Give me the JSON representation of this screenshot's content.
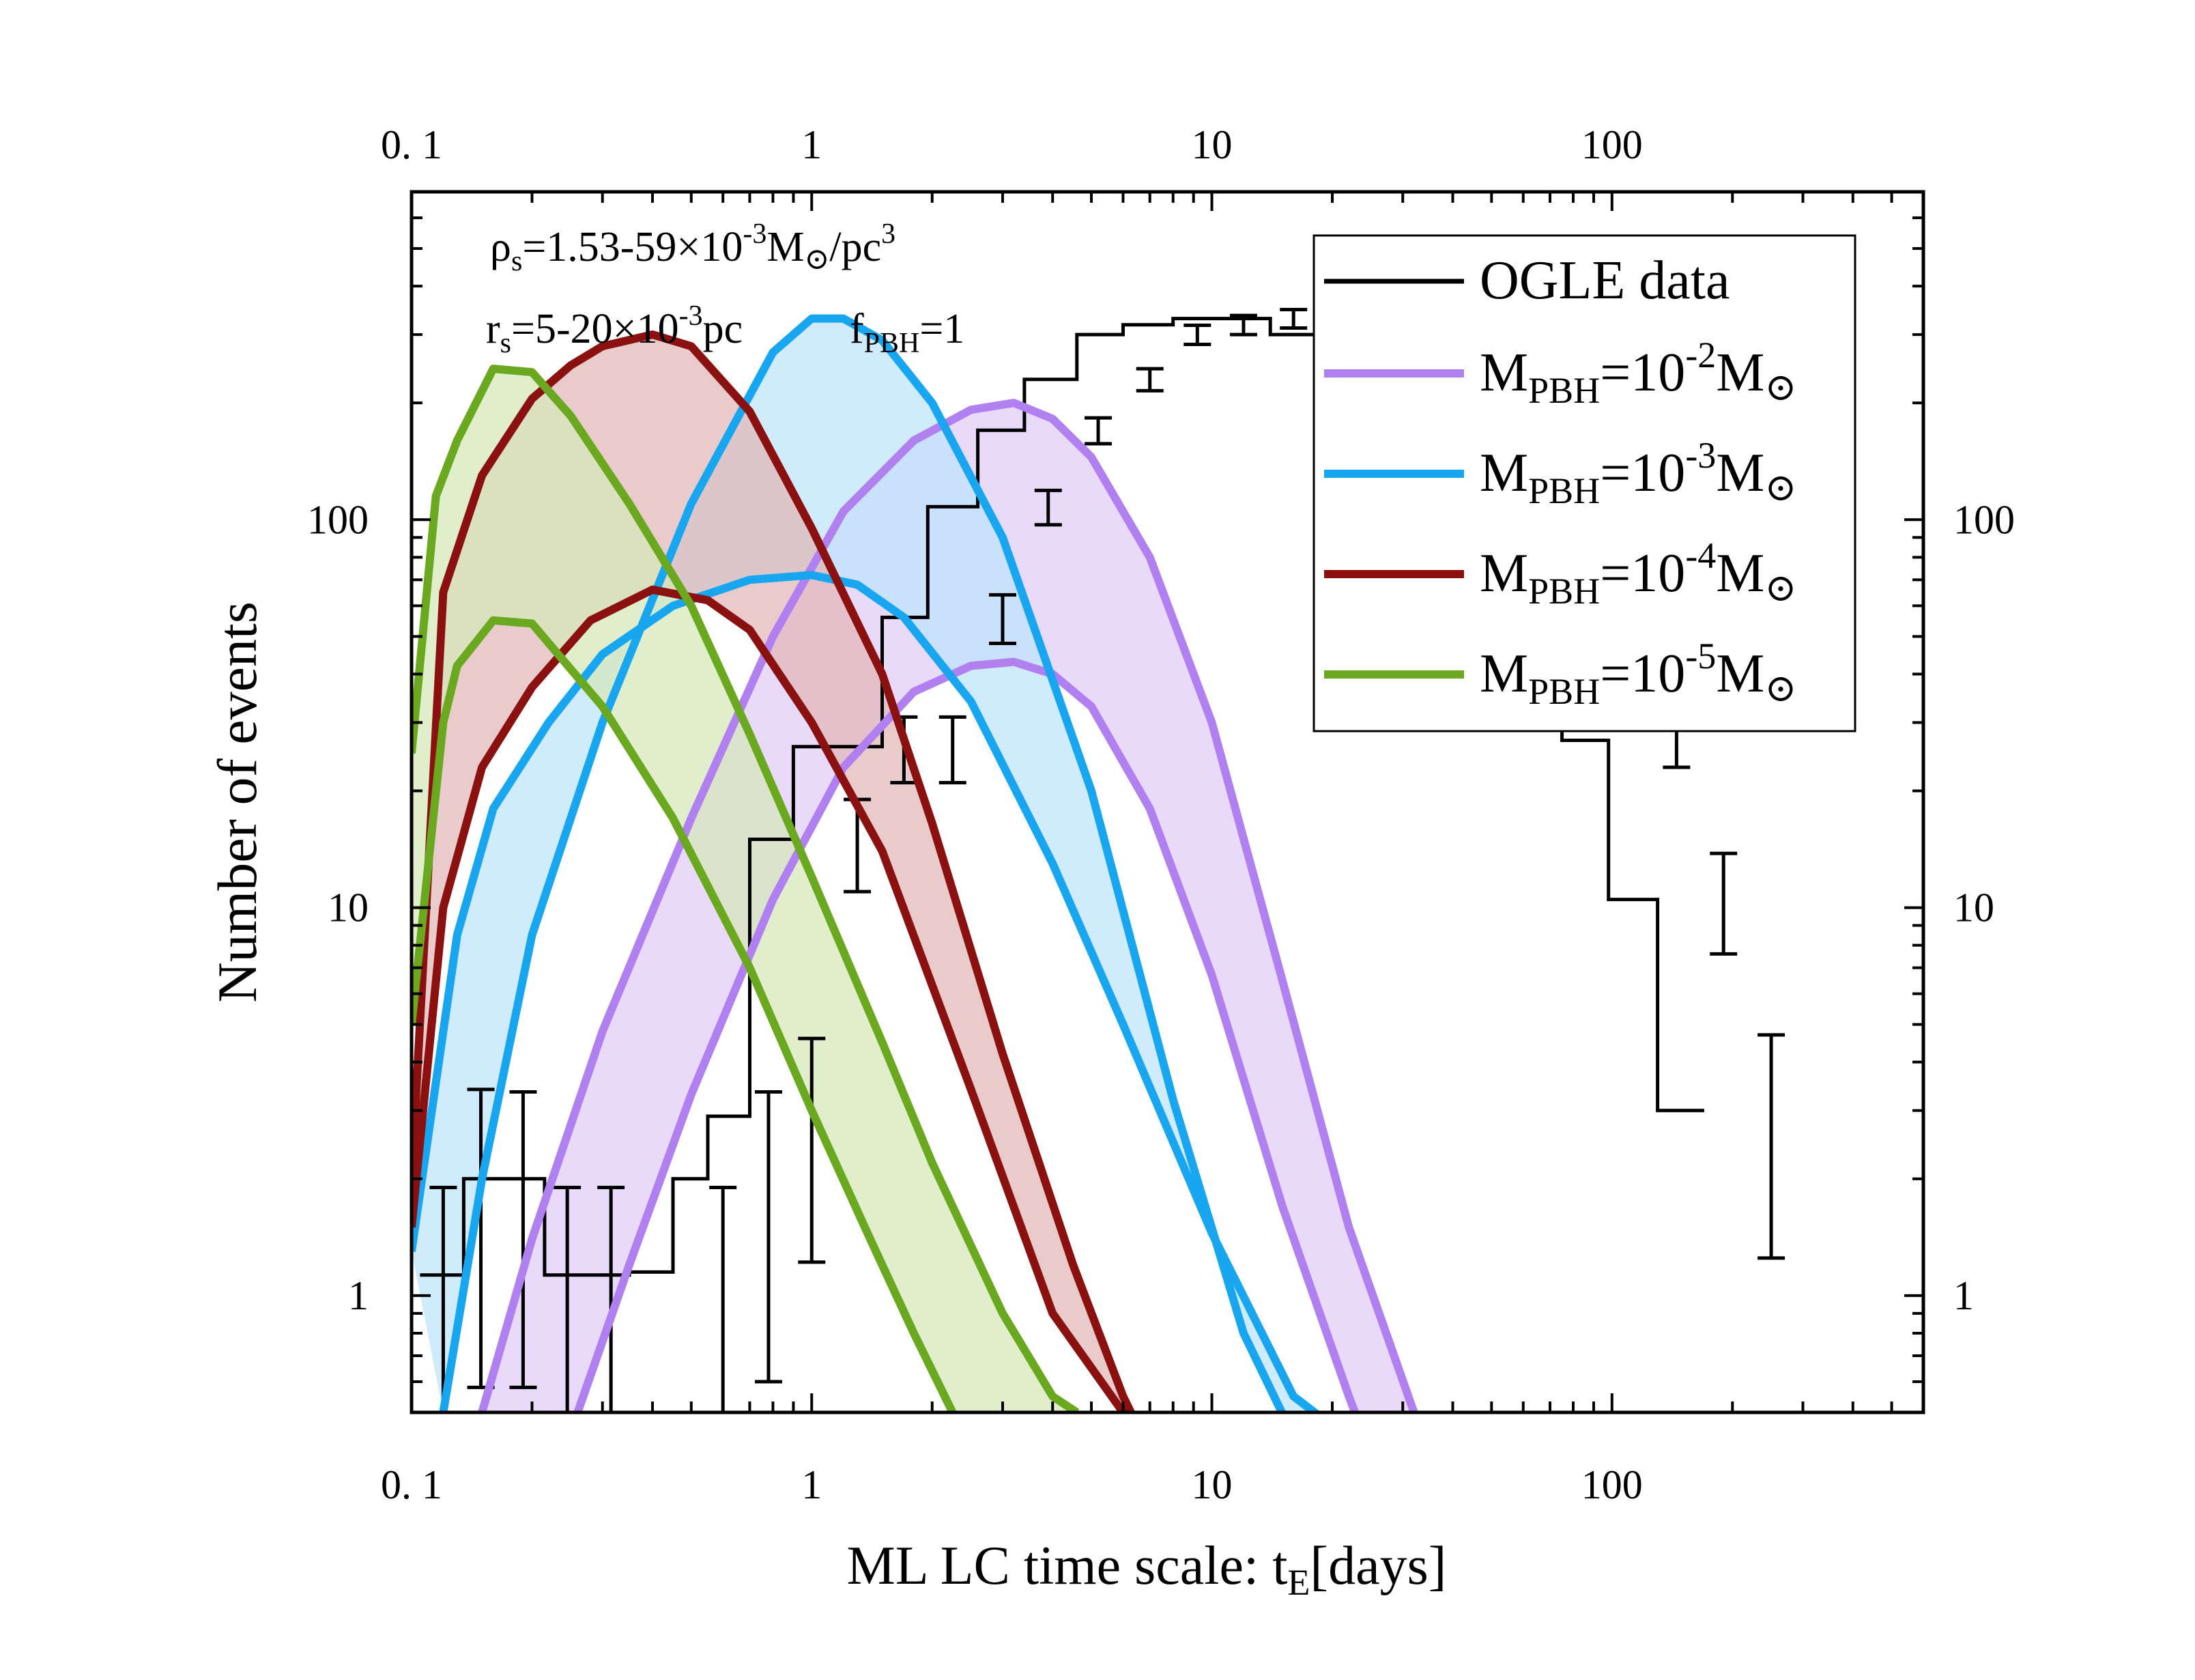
{
  "chart_data": {
    "type": "area",
    "xscale": "log",
    "yscale": "log",
    "xlim": [
      0.1,
      600
    ],
    "ylim": [
      0.5,
      700
    ],
    "xlabel_main": "ML LC time scale: t",
    "xlabel_sub": "E",
    "xlabel_end": "[days]",
    "ylabel": "Number of events",
    "x_ticks": [
      0.1,
      1,
      10,
      100
    ],
    "x_tick_labels": [
      "0. 1",
      "1",
      "10",
      "100"
    ],
    "y_ticks": [
      1,
      10,
      100
    ],
    "y_tick_labels": [
      "1",
      "10",
      "100"
    ],
    "annotations": {
      "rho_main": "ρ",
      "rho_sub": "s",
      "rho_mid": "=1.53-59×10",
      "rho_sup": "-3",
      "rho_unit": "M",
      "rho_unit_sym": "⊙",
      "rho_tail": "/pc",
      "rho_tail_sup": "3",
      "rs_main": "r",
      "rs_sub": "s",
      "rs_mid": "=5-20×10",
      "rs_sup": "-3",
      "rs_tail": "pc",
      "f_main": "f",
      "f_sub": "PBH",
      "f_tail": "=1"
    },
    "legend_position": "top-right",
    "ogle": {
      "name": "OGLE data",
      "color": "#000000",
      "bins": [
        {
          "x": 0.12,
          "y": 1.13,
          "err": [
            0.5,
            1.9
          ]
        },
        {
          "x": 0.149,
          "y": 2.0,
          "err": [
            0.58,
            3.4
          ]
        },
        {
          "x": 0.19,
          "y": 2.0,
          "err": [
            0.58,
            3.35
          ]
        },
        {
          "x": 0.245,
          "y": 1.13,
          "err": [
            0.45,
            1.9
          ]
        },
        {
          "x": 0.315,
          "y": 1.13,
          "err": [
            0.45,
            1.9
          ]
        },
        {
          "x": 0.6,
          "y": 1.15,
          "err": [
            0.45,
            1.9
          ]
        },
        {
          "x": 0.78,
          "y": 2.0,
          "err": [
            0.6,
            3.35
          ]
        },
        {
          "x": 1.0,
          "y": 2.9,
          "err": [
            1.22,
            4.6
          ]
        },
        {
          "x": 1.3,
          "y": 15.0,
          "err": [
            11.0,
            19.0
          ]
        },
        {
          "x": 1.7,
          "y": 26.0,
          "err": [
            21.0,
            31.0
          ]
        },
        {
          "x": 2.25,
          "y": 26.0,
          "err": [
            21.0,
            31.0
          ]
        },
        {
          "x": 3.0,
          "y": 56.0,
          "err": [
            48.0,
            64.0
          ]
        },
        {
          "x": 3.9,
          "y": 108.0,
          "err": [
            97.0,
            119.0
          ]
        },
        {
          "x": 5.2,
          "y": 170.0,
          "err": [
            157.0,
            183.0
          ]
        },
        {
          "x": 7.0,
          "y": 230.0,
          "err": [
            215.0,
            245.0
          ]
        },
        {
          "x": 9.2,
          "y": 300.0,
          "err": [
            283.0,
            317.0
          ]
        },
        {
          "x": 12.0,
          "y": 318.0,
          "err": [
            300.0,
            336.0
          ]
        },
        {
          "x": 16.0,
          "y": 330.0,
          "err": [
            312.0,
            348.0
          ]
        },
        {
          "x": 21.0,
          "y": 330.0,
          "err": [
            312.0,
            348.0
          ]
        },
        {
          "x": 28.0,
          "y": 300.0,
          "err": [
            283.0,
            317.0
          ]
        },
        {
          "x": 37.0,
          "y": 228.0,
          "err": [
            213.0,
            243.0
          ]
        },
        {
          "x": 49.0,
          "y": 185.0,
          "err": [
            171.0,
            199.0
          ]
        },
        {
          "x": 65.0,
          "y": 95.0,
          "err": [
            86.0,
            104.0
          ]
        },
        {
          "x": 85.0,
          "y": 75.0,
          "err": [
            67.0,
            83.0
          ]
        },
        {
          "x": 110.0,
          "y": 50.0,
          "err": [
            43.0,
            57.0
          ]
        },
        {
          "x": 145.0,
          "y": 27.0,
          "err": [
            23.0,
            32.0
          ]
        },
        {
          "x": 190.0,
          "y": 10.5,
          "err": [
            7.6,
            13.8
          ]
        },
        {
          "x": 250.0,
          "y": 3.0,
          "err": [
            1.25,
            4.7
          ]
        }
      ],
      "step_edges": [
        0.105,
        0.135,
        0.165,
        0.215,
        0.27,
        0.35,
        0.45,
        0.55,
        0.7,
        0.9,
        1.15,
        1.5,
        1.95,
        2.6,
        3.4,
        4.6,
        6.0,
        8.0,
        10.5,
        14.0,
        18.5,
        24.5,
        32.0,
        43.0,
        57.0,
        75.0,
        98.0,
        130.0,
        170.0,
        225.0,
        290.0
      ]
    },
    "series": [
      {
        "name_main": "M",
        "name_sub": "PBH",
        "name_mid": "=10",
        "name_sup": "-2",
        "name_unit": "M",
        "name_unit_sym": "⊙",
        "color": "#b07ff0",
        "fill": "#e2ccf8",
        "upper": {
          "x": [
            0.15,
            0.2,
            0.3,
            0.5,
            0.8,
            1.2,
            1.8,
            2.5,
            3.2,
            4.0,
            5.0,
            7.0,
            10.0,
            15.0,
            22.0,
            32.0
          ],
          "y": [
            0.5,
            1.4,
            4.8,
            17,
            50,
            105,
            160,
            192,
            200,
            182,
            145,
            80,
            30,
            6.5,
            1.5,
            0.5
          ]
        },
        "lower": {
          "x": [
            0.26,
            0.35,
            0.5,
            0.8,
            1.2,
            1.8,
            2.5,
            3.2,
            4.0,
            5.0,
            7.0,
            10.0,
            15.0,
            22.0,
            32.0,
            52.0
          ],
          "y": [
            0.5,
            1.2,
            3.3,
            10.5,
            23,
            36,
            42,
            43,
            40,
            33,
            18,
            6.7,
            1.7,
            0.55,
            0.2,
            0.1
          ]
        }
      },
      {
        "name_main": "M",
        "name_sub": "PBH",
        "name_mid": "=10",
        "name_sup": "-3",
        "name_unit": "M",
        "name_unit_sym": "⊙",
        "color": "#18a6f0",
        "fill": "#bde3fb",
        "upper": {
          "x": [
            0.12,
            0.15,
            0.2,
            0.3,
            0.5,
            0.8,
            1.0,
            1.2,
            1.5,
            2.0,
            3.0,
            5.0,
            8.0,
            12.0,
            19.0
          ],
          "y": [
            0.5,
            2.0,
            8.5,
            30,
            110,
            270,
            330,
            330,
            290,
            200,
            90,
            20,
            3.2,
            0.8,
            0.3
          ]
        },
        "lower": {
          "x": [
            0.1,
            0.13,
            0.16,
            0.22,
            0.3,
            0.45,
            0.7,
            1.0,
            1.3,
            1.7,
            2.5,
            4.0,
            6.0,
            10.0,
            16.0,
            24.0
          ],
          "y": [
            1.3,
            8.5,
            18,
            30,
            45,
            60,
            70,
            72,
            68,
            56,
            34,
            13,
            5,
            1.45,
            0.55,
            0.4
          ]
        }
      },
      {
        "name_main": "M",
        "name_sub": "PBH",
        "name_mid": "=10",
        "name_sup": "-4",
        "name_unit": "M",
        "name_unit_sym": "⊙",
        "color": "#8b1010",
        "fill": "#e2b7b7",
        "upper": {
          "x": [
            0.1,
            0.12,
            0.15,
            0.2,
            0.25,
            0.3,
            0.4,
            0.5,
            0.7,
            1.0,
            1.5,
            2.0,
            3.0,
            4.5,
            6.0,
            8.0,
            10.5
          ],
          "y": [
            2.0,
            65,
            130,
            205,
            250,
            280,
            300,
            280,
            190,
            95,
            40,
            16.5,
            4.2,
            1.2,
            0.55,
            0.3,
            0.5
          ]
        },
        "lower": {
          "x": [
            0.1,
            0.12,
            0.15,
            0.2,
            0.28,
            0.4,
            0.55,
            0.7,
            1.0,
            1.5,
            2.5,
            4.0,
            6.0
          ],
          "y": [
            1.5,
            10,
            23,
            37,
            55,
            66,
            62,
            52,
            30,
            14,
            3.4,
            0.9,
            0.5
          ]
        }
      },
      {
        "name_main": "M",
        "name_sub": "PBH",
        "name_mid": "=10",
        "name_sup": "-5",
        "name_unit": "M",
        "name_unit_sym": "⊙",
        "color": "#6aa820",
        "fill": "#d6e7b8",
        "upper": {
          "x": [
            0.1,
            0.115,
            0.13,
            0.16,
            0.2,
            0.25,
            0.35,
            0.5,
            0.7,
            1.0,
            1.5,
            2.0,
            3.0,
            4.0,
            4.6
          ],
          "y": [
            25,
            115,
            160,
            245,
            240,
            185,
            110,
            60,
            28,
            12,
            4.5,
            2.2,
            0.9,
            0.55,
            0.5
          ]
        },
        "lower": {
          "x": [
            0.1,
            0.12,
            0.13,
            0.16,
            0.2,
            0.3,
            0.45,
            0.7,
            1.0,
            1.4,
            1.8,
            2.25,
            2.6
          ],
          "y": [
            5.0,
            30,
            42,
            55,
            54,
            33,
            17,
            7,
            3.0,
            1.4,
            0.8,
            0.5,
            0.35
          ]
        }
      }
    ]
  }
}
